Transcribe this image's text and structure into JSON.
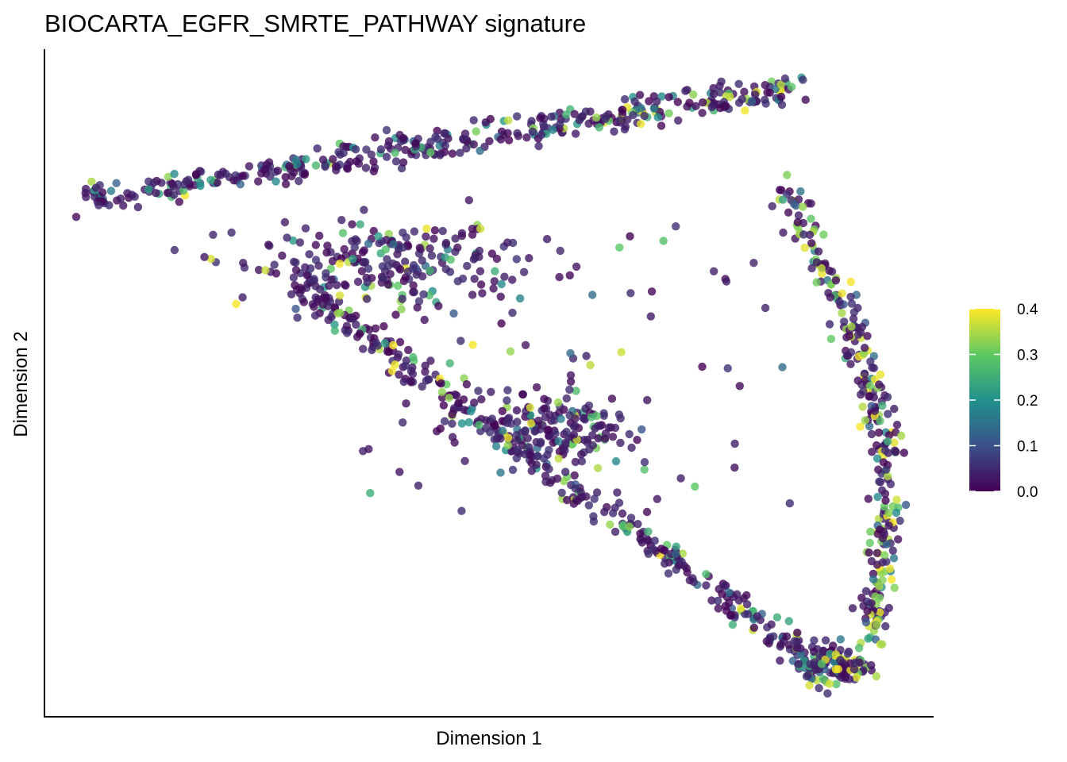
{
  "chart_data": {
    "type": "scatter",
    "title": "BIOCARTA_EGFR_SMRTE_PATHWAY signature",
    "xlabel": "Dimension 1",
    "ylabel": "Dimension 2",
    "xlim": [
      0,
      100
    ],
    "ylim": [
      0,
      100
    ],
    "grid": false,
    "x_ticks_shown": false,
    "y_ticks_shown": false,
    "point_opacity": 0.8,
    "colorbar": {
      "min": 0.0,
      "max": 0.4,
      "ticks": [
        "0.0",
        "0.1",
        "0.2",
        "0.3",
        "0.4"
      ],
      "colormap": "viridis",
      "colors": [
        "#440154",
        "#3b528b",
        "#21918c",
        "#5ec962",
        "#fde725"
      ],
      "placement": "right"
    },
    "structure": {
      "branches": [
        {
          "name": "top",
          "from": [
            4,
            78
          ],
          "to": [
            85,
            95
          ],
          "n": 420
        },
        {
          "name": "lower-diagonal",
          "from": [
            28,
            65
          ],
          "to": [
            88,
            6
          ],
          "n": 360
        },
        {
          "name": "right-arc",
          "from": [
            83,
            80
          ],
          "to": [
            93,
            10
          ],
          "n": 300
        },
        {
          "name": "left-mass",
          "center": [
            38,
            68
          ],
          "spread": [
            8,
            3
          ],
          "n": 220
        },
        {
          "name": "mid-mass",
          "center": [
            58,
            43
          ],
          "spread": [
            4,
            3
          ],
          "n": 160
        },
        {
          "name": "bottom-cluster",
          "center": [
            89,
            7
          ],
          "spread": [
            2,
            1.5
          ],
          "n": 120
        }
      ],
      "scattered_interior": 90
    }
  }
}
